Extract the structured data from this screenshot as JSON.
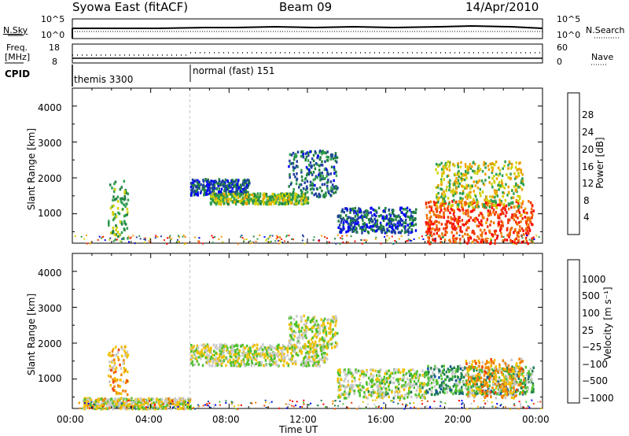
{
  "header": {
    "title": "Syowa East (fitACF)",
    "beam": "Beam 09",
    "date": "14/Apr/2010"
  },
  "noise_panel": {
    "left_label": "N.Sky",
    "right_label": "N.Search",
    "left_ticks": [
      "10^5",
      "10^0"
    ],
    "right_ticks": [
      "10^5",
      "10^0"
    ]
  },
  "freq_panel": {
    "left_label_1": "Freq.",
    "left_label_2": "[MHz]",
    "right_label": "Nave",
    "left_ticks": [
      "18",
      "8"
    ],
    "right_ticks": [
      "60",
      "0"
    ]
  },
  "cpid": {
    "label": "CPID",
    "modes": [
      {
        "name": "themis 3300",
        "start_hour": 0
      },
      {
        "name": "normal (fast) 151",
        "start_hour": 6
      }
    ]
  },
  "x_axis": {
    "label": "Time UT",
    "ticks": [
      "00:00",
      "04:00",
      "08:00",
      "12:00",
      "16:00",
      "20:00",
      "00:00"
    ],
    "range_hours": [
      0,
      24
    ]
  },
  "power_panel": {
    "ylabel": "Slant Range [km]",
    "yticks": [
      "1000",
      "2000",
      "3000",
      "4000"
    ],
    "colorbar_label": "Power [dB]",
    "colorbar_ticks": [
      "4",
      "8",
      "12",
      "16",
      "20",
      "24",
      "28"
    ]
  },
  "velocity_panel": {
    "ylabel": "Slant Range [km]",
    "yticks": [
      "1000",
      "2000",
      "3000",
      "4000"
    ],
    "colorbar_label": "Velocity [m s⁻¹]",
    "colorbar_ticks": [
      "1000",
      "500",
      "100",
      "25",
      "−25",
      "−100",
      "−500",
      "−1000"
    ]
  },
  "colors": {
    "power_scale": [
      "#0000ff",
      "#2040a0",
      "#208040",
      "#30a050",
      "#d0d000",
      "#f0a000",
      "#f07000",
      "#f03000",
      "#ff0000"
    ],
    "velocity_scale": [
      "#0000ff",
      "#1050a0",
      "#208050",
      "#50c030",
      "#c8c8c8",
      "#f0c000",
      "#f08000",
      "#f04000",
      "#ff0000"
    ]
  },
  "chart_data": [
    {
      "type": "heatmap",
      "title": "Power",
      "x_range_hours": [
        0,
        24
      ],
      "ylim_km": [
        180,
        4500
      ],
      "value_range_db": [
        0,
        32
      ],
      "regions": [
        {
          "t0": 1.8,
          "t1": 2.8,
          "r0": 300,
          "r1": 1950,
          "value": 12
        },
        {
          "t0": 6.0,
          "t1": 9.0,
          "r0": 1550,
          "r1": 2000,
          "value": 6
        },
        {
          "t0": 7.0,
          "t1": 12.0,
          "r0": 1300,
          "r1": 1600,
          "value": 14
        },
        {
          "t0": 11.0,
          "t1": 13.5,
          "r0": 1500,
          "r1": 2800,
          "value": 8
        },
        {
          "t0": 13.5,
          "t1": 17.5,
          "r0": 500,
          "r1": 1200,
          "value": 6
        },
        {
          "t0": 18.0,
          "t1": 23.5,
          "r0": 200,
          "r1": 1400,
          "value": 26
        },
        {
          "t0": 18.5,
          "t1": 23.0,
          "r0": 1200,
          "r1": 2500,
          "value": 16
        }
      ]
    },
    {
      "type": "heatmap",
      "title": "Velocity",
      "x_range_hours": [
        0,
        24
      ],
      "ylim_km": [
        180,
        4500
      ],
      "value_range_ms": [
        -1000,
        1000
      ],
      "regions": [
        {
          "t0": 1.8,
          "t1": 2.8,
          "r0": 600,
          "r1": 1950,
          "value": -300
        },
        {
          "t0": 0.5,
          "t1": 6.0,
          "r0": 200,
          "r1": 500,
          "value": -80
        },
        {
          "t0": 6.0,
          "t1": 13.0,
          "r0": 1400,
          "r1": 2000,
          "value": 0
        },
        {
          "t0": 11.0,
          "t1": 13.5,
          "r0": 1900,
          "r1": 2800,
          "value": 10
        },
        {
          "t0": 13.5,
          "t1": 18.0,
          "r0": 500,
          "r1": 1300,
          "value": 60
        },
        {
          "t0": 18.0,
          "t1": 23.5,
          "r0": 600,
          "r1": 1400,
          "value": 300
        },
        {
          "t0": 20.0,
          "t1": 23.0,
          "r0": 500,
          "r1": 1600,
          "value": -300
        }
      ]
    }
  ]
}
